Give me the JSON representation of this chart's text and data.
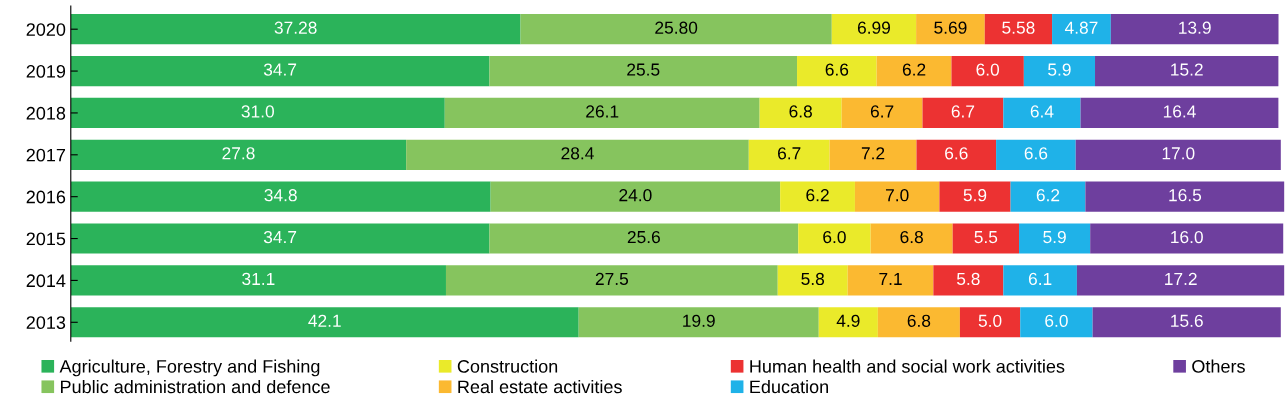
{
  "chart_data": {
    "type": "bar",
    "orientation": "horizontal",
    "stacked": true,
    "legend": "bottom",
    "grid": false,
    "categories": [
      "2020",
      "2019",
      "2018",
      "2017",
      "2016",
      "2015",
      "2014",
      "2013"
    ],
    "series": [
      {
        "name": "Agriculture, Forestry and Fishing",
        "color": "#2bb35a",
        "values": [
          37.28,
          34.7,
          31.0,
          27.8,
          34.8,
          34.7,
          31.1,
          42.1
        ],
        "value_labels": [
          "37.28",
          "34.7",
          "31.0",
          "27.8",
          "34.8",
          "34.7",
          "31.1",
          "42.1"
        ]
      },
      {
        "name": "Public administration and defence",
        "color": "#86c45e",
        "values": [
          25.8,
          25.5,
          26.1,
          28.4,
          24.0,
          25.6,
          27.5,
          19.9
        ],
        "value_labels": [
          "25.80",
          "25.5",
          "26.1",
          "28.4",
          "24.0",
          "25.6",
          "27.5",
          "19.9"
        ]
      },
      {
        "name": "Construction",
        "color": "#eaea2a",
        "values": [
          6.99,
          6.6,
          6.8,
          6.7,
          6.2,
          6.0,
          5.8,
          4.9
        ],
        "value_labels": [
          "6.99",
          "6.6",
          "6.8",
          "6.7",
          "6.2",
          "6.0",
          "5.8",
          "4.9"
        ]
      },
      {
        "name": "Real estate activities",
        "color": "#fbb931",
        "values": [
          5.69,
          6.2,
          6.7,
          7.2,
          7.0,
          6.8,
          7.1,
          6.8
        ],
        "value_labels": [
          "5.69",
          "6.2",
          "6.7",
          "7.2",
          "7.0",
          "6.8",
          "7.1",
          "6.8"
        ]
      },
      {
        "name": "Human health and social work activities",
        "color": "#ec3232",
        "values": [
          5.58,
          6.0,
          6.7,
          6.6,
          5.9,
          5.5,
          5.8,
          5.0
        ],
        "value_labels": [
          "5.58",
          "6.0",
          "6.7",
          "6.6",
          "5.9",
          "5.5",
          "5.8",
          "5.0"
        ]
      },
      {
        "name": "Education",
        "color": "#1fb2e8",
        "values": [
          4.87,
          5.9,
          6.4,
          6.6,
          6.2,
          5.9,
          6.1,
          6.0
        ],
        "value_labels": [
          "4.87",
          "5.9",
          "6.4",
          "6.6",
          "6.2",
          "5.9",
          "6.1",
          "6.0"
        ]
      },
      {
        "name": "Others",
        "color": "#6e3f9e",
        "values": [
          13.9,
          15.2,
          16.4,
          17.0,
          16.5,
          16.0,
          17.2,
          15.6
        ],
        "value_labels": [
          "13.9",
          "15.2",
          "16.4",
          "17.0",
          "16.5",
          "16.0",
          "17.2",
          "15.6"
        ]
      }
    ]
  }
}
